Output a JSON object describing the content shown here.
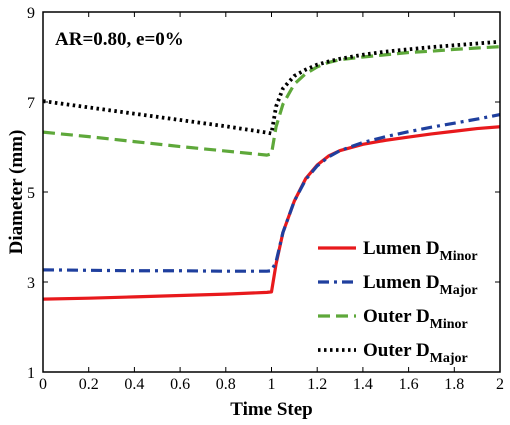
{
  "chart_data": {
    "type": "line",
    "title": "",
    "annotation": "AR=0.80, e=0%",
    "xlabel": "Time Step",
    "ylabel": "Diameter (mm)",
    "xlim": [
      0,
      2
    ],
    "ylim": [
      1,
      9
    ],
    "x_ticks": [
      "0",
      "0.2",
      "0.4",
      "0.6",
      "0.8",
      "1",
      "1.2",
      "1.4",
      "1.6",
      "1.8",
      "2"
    ],
    "y_ticks": [
      "1",
      "3",
      "5",
      "7",
      "9"
    ],
    "grid": false,
    "legend_position": "bottom-right",
    "series": [
      {
        "name": "Lumen D",
        "name_sub": "Minor",
        "color": "#e8191c",
        "style": "solid",
        "points": [
          [
            0,
            2.62
          ],
          [
            0.2,
            2.64
          ],
          [
            0.4,
            2.67
          ],
          [
            0.6,
            2.7
          ],
          [
            0.8,
            2.73
          ],
          [
            0.98,
            2.77
          ],
          [
            1.0,
            2.78
          ],
          [
            1.02,
            3.4
          ],
          [
            1.05,
            4.1
          ],
          [
            1.1,
            4.8
          ],
          [
            1.15,
            5.3
          ],
          [
            1.2,
            5.6
          ],
          [
            1.25,
            5.8
          ],
          [
            1.3,
            5.92
          ],
          [
            1.4,
            6.06
          ],
          [
            1.5,
            6.15
          ],
          [
            1.6,
            6.22
          ],
          [
            1.7,
            6.29
          ],
          [
            1.8,
            6.35
          ],
          [
            1.9,
            6.41
          ],
          [
            2.0,
            6.45
          ]
        ]
      },
      {
        "name": "Lumen D",
        "name_sub": "Major",
        "color": "#1f3f9e",
        "style": "dashdot",
        "points": [
          [
            0,
            3.27
          ],
          [
            0.2,
            3.26
          ],
          [
            0.4,
            3.25
          ],
          [
            0.6,
            3.25
          ],
          [
            0.8,
            3.24
          ],
          [
            0.98,
            3.24
          ],
          [
            1.0,
            3.25
          ],
          [
            1.02,
            3.45
          ],
          [
            1.05,
            4.1
          ],
          [
            1.1,
            4.8
          ],
          [
            1.15,
            5.28
          ],
          [
            1.2,
            5.58
          ],
          [
            1.25,
            5.78
          ],
          [
            1.3,
            5.92
          ],
          [
            1.4,
            6.1
          ],
          [
            1.5,
            6.23
          ],
          [
            1.6,
            6.34
          ],
          [
            1.7,
            6.44
          ],
          [
            1.8,
            6.53
          ],
          [
            1.9,
            6.62
          ],
          [
            2.0,
            6.72
          ]
        ]
      },
      {
        "name": "Outer D",
        "name_sub": "Minor",
        "color": "#5ea83a",
        "style": "dashed",
        "points": [
          [
            0,
            6.33
          ],
          [
            0.2,
            6.23
          ],
          [
            0.4,
            6.12
          ],
          [
            0.6,
            6.01
          ],
          [
            0.8,
            5.91
          ],
          [
            0.98,
            5.82
          ],
          [
            1.0,
            5.85
          ],
          [
            1.02,
            6.45
          ],
          [
            1.05,
            6.95
          ],
          [
            1.1,
            7.4
          ],
          [
            1.15,
            7.63
          ],
          [
            1.2,
            7.78
          ],
          [
            1.25,
            7.88
          ],
          [
            1.3,
            7.94
          ],
          [
            1.4,
            8.0
          ],
          [
            1.5,
            8.05
          ],
          [
            1.6,
            8.1
          ],
          [
            1.7,
            8.13
          ],
          [
            1.8,
            8.17
          ],
          [
            1.9,
            8.2
          ],
          [
            2.0,
            8.23
          ]
        ]
      },
      {
        "name": "Outer D",
        "name_sub": "Major",
        "color": "#000000",
        "style": "dotted",
        "points": [
          [
            0,
            7.02
          ],
          [
            0.2,
            6.88
          ],
          [
            0.4,
            6.74
          ],
          [
            0.6,
            6.6
          ],
          [
            0.8,
            6.46
          ],
          [
            0.98,
            6.32
          ],
          [
            1.0,
            6.3
          ],
          [
            1.02,
            6.9
          ],
          [
            1.05,
            7.3
          ],
          [
            1.1,
            7.58
          ],
          [
            1.15,
            7.72
          ],
          [
            1.2,
            7.83
          ],
          [
            1.25,
            7.9
          ],
          [
            1.3,
            7.96
          ],
          [
            1.4,
            8.05
          ],
          [
            1.5,
            8.12
          ],
          [
            1.6,
            8.17
          ],
          [
            1.7,
            8.22
          ],
          [
            1.8,
            8.26
          ],
          [
            1.9,
            8.3
          ],
          [
            2.0,
            8.34
          ]
        ]
      }
    ]
  }
}
